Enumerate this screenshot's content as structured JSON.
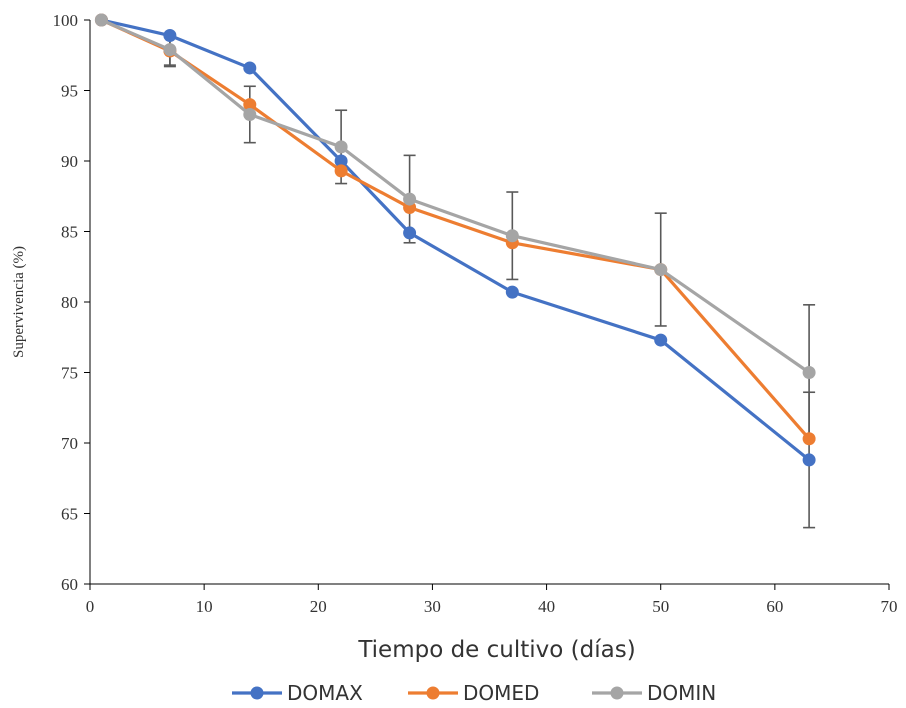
{
  "chart_data": {
    "type": "line",
    "title": "",
    "xlabel": "Tiempo de cultivo (días)",
    "ylabel": "Supervivencia (%)",
    "xlim": [
      0,
      70
    ],
    "ylim": [
      60,
      100
    ],
    "xticks": [
      0,
      10,
      20,
      30,
      40,
      50,
      60,
      70
    ],
    "yticks": [
      60,
      65,
      70,
      75,
      80,
      85,
      90,
      95,
      100
    ],
    "grid": false,
    "legend_position": "bottom",
    "x": [
      1,
      7,
      14,
      22,
      28,
      37,
      50,
      63
    ],
    "series": [
      {
        "name": "DOMAX",
        "color": "#4472C4",
        "values": [
          100,
          98.9,
          96.6,
          90.0,
          84.9,
          80.7,
          77.3,
          68.8
        ],
        "error": [
          0,
          0,
          0,
          0,
          0,
          0,
          0,
          4.8
        ]
      },
      {
        "name": "DOMED",
        "color": "#ED7D31",
        "values": [
          100,
          97.8,
          94.0,
          89.3,
          86.7,
          84.2,
          82.3,
          70.3
        ],
        "error": [
          0,
          1.1,
          0,
          0,
          0,
          0,
          0,
          0
        ]
      },
      {
        "name": "DOMIN",
        "color": "#A5A5A5",
        "values": [
          100,
          97.9,
          93.3,
          91.0,
          87.3,
          84.7,
          82.3,
          75.0
        ],
        "error": [
          0,
          1.1,
          2.0,
          2.6,
          3.1,
          3.1,
          4.0,
          4.8
        ]
      }
    ],
    "error_bar_color": "#595959",
    "axis_color": "#000000"
  }
}
